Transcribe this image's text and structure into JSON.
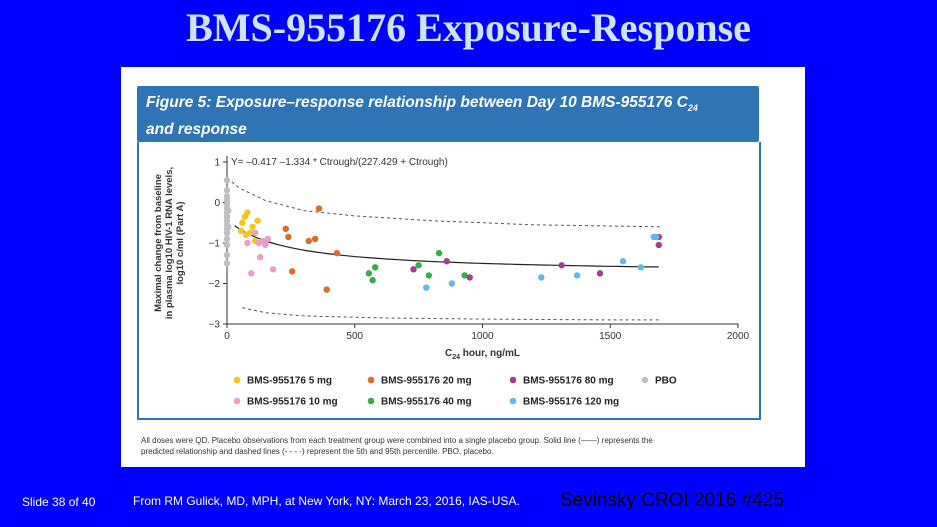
{
  "slide": {
    "title": "BMS-955176 Exposure-Response",
    "slide_number": "Slide 38 of 40",
    "source": "From RM Gulick, MD, MPH, at New York, NY: March 23, 2016, IAS-USA.",
    "citation": "Sevinsky CROI 2016 #425"
  },
  "figure": {
    "title_main": "Figure 5: Exposure–response relationship between Day 10 BMS-955176 C",
    "title_sub": "24",
    "title_line2": "and response",
    "footnote_line1": "All doses were QD. Placebo observations from each treatment group were combined into a single placebo group. Solid line (——) represents the",
    "footnote_line2": "predicted relationship and dashed lines (- - - -) represent the 5th and 95th percentile. PBO, placebo."
  },
  "chart_data": {
    "type": "scatter",
    "equation": "Y= –0.417 –1.334 * Ctrough/(227.429 + Ctrough)",
    "xlabel_main": "C",
    "xlabel_sub": "24",
    "xlabel_rest": " hour, ng/mL",
    "ylabel_line1": "Maximal change from baseline",
    "ylabel_line2": "in plasma log10 HIV-1 RNA levels,",
    "ylabel_line3": "log10 c/ml (Part A)",
    "xlim": [
      0,
      2000
    ],
    "ylim": [
      -3,
      1
    ],
    "xticks": [
      0,
      500,
      1000,
      1500,
      2000
    ],
    "xtick_labels": [
      "0",
      "500",
      "1000",
      "1500",
      "2000"
    ],
    "yticks": [
      1,
      0,
      -1,
      -2,
      -3
    ],
    "ytick_labels": [
      "1",
      "0",
      "−1",
      "−2",
      "−3"
    ],
    "model": {
      "a": -0.417,
      "b": -1.334,
      "ec50": 227.429
    },
    "lower_band": [
      [
        60,
        -2.6
      ],
      [
        150,
        -2.72
      ],
      [
        300,
        -2.8
      ],
      [
        600,
        -2.85
      ],
      [
        1000,
        -2.88
      ],
      [
        1500,
        -2.9
      ],
      [
        1700,
        -2.9
      ]
    ],
    "upper_band": [
      [
        0,
        0.6
      ],
      [
        50,
        0.35
      ],
      [
        150,
        0.05
      ],
      [
        300,
        -0.2
      ],
      [
        500,
        -0.33
      ],
      [
        800,
        -0.45
      ],
      [
        1200,
        -0.55
      ],
      [
        1700,
        -0.6
      ]
    ],
    "series": [
      {
        "name": "BMS-955176 5 mg",
        "color": "#f2c81c",
        "points": [
          [
            70,
            -0.35
          ],
          [
            80,
            -0.25
          ],
          [
            60,
            -0.5
          ],
          [
            100,
            -0.6
          ],
          [
            90,
            -0.75
          ],
          [
            120,
            -0.45
          ],
          [
            75,
            -0.8
          ],
          [
            55,
            -0.7
          ],
          [
            110,
            -0.95
          ]
        ]
      },
      {
        "name": "BMS-955176 10 mg",
        "color": "#e8a0c8",
        "points": [
          [
            80,
            -1.0
          ],
          [
            110,
            -0.75
          ],
          [
            130,
            -1.35
          ],
          [
            150,
            -1.05
          ],
          [
            95,
            -1.75
          ],
          [
            180,
            -1.65
          ],
          [
            125,
            -1.0
          ],
          [
            140,
            -0.95
          ],
          [
            160,
            -0.9
          ]
        ]
      },
      {
        "name": "BMS-955176 20 mg",
        "color": "#e06a2c",
        "points": [
          [
            360,
            -0.15
          ],
          [
            230,
            -0.65
          ],
          [
            320,
            -0.95
          ],
          [
            345,
            -0.9
          ],
          [
            430,
            -1.25
          ],
          [
            255,
            -1.7
          ],
          [
            390,
            -2.15
          ],
          [
            240,
            -0.85
          ]
        ]
      },
      {
        "name": "BMS-955176 40 mg",
        "color": "#3aaa4a",
        "points": [
          [
            555,
            -1.75
          ],
          [
            580,
            -1.6
          ],
          [
            570,
            -1.92
          ],
          [
            750,
            -1.55
          ],
          [
            830,
            -1.25
          ],
          [
            790,
            -1.8
          ],
          [
            930,
            -1.8
          ]
        ]
      },
      {
        "name": "BMS-955176 80 mg",
        "color": "#a0408c",
        "points": [
          [
            730,
            -1.65
          ],
          [
            860,
            -1.45
          ],
          [
            950,
            -1.85
          ],
          [
            1310,
            -1.55
          ],
          [
            1460,
            -1.75
          ],
          [
            1690,
            -0.85
          ],
          [
            1690,
            -1.05
          ]
        ]
      },
      {
        "name": "BMS-955176 120 mg",
        "color": "#62b8e8",
        "points": [
          [
            780,
            -2.1
          ],
          [
            880,
            -2.0
          ],
          [
            1230,
            -1.85
          ],
          [
            1370,
            -1.8
          ],
          [
            1550,
            -1.45
          ],
          [
            1620,
            -1.6
          ],
          [
            1680,
            -0.85
          ],
          [
            1670,
            -0.85
          ]
        ]
      },
      {
        "name": "PBO",
        "color": "#bfbfbf",
        "points": [
          [
            0,
            0.55
          ],
          [
            0,
            0.3
          ],
          [
            0,
            0.15
          ],
          [
            0,
            0.05
          ],
          [
            0,
            -0.05
          ],
          [
            0,
            -0.15
          ],
          [
            0,
            -0.25
          ],
          [
            0,
            -0.35
          ],
          [
            0,
            -0.45
          ],
          [
            0,
            -0.55
          ],
          [
            0,
            -0.65
          ],
          [
            0,
            -0.75
          ],
          [
            0,
            -0.9
          ],
          [
            0,
            -1.05
          ],
          [
            0,
            -1.3
          ],
          [
            0,
            -1.5
          ],
          [
            5,
            -0.2
          ],
          [
            5,
            -0.6
          ]
        ]
      }
    ],
    "legend": [
      {
        "label": "BMS-955176 5 mg",
        "color": "#f2c81c"
      },
      {
        "label": "BMS-955176 20 mg",
        "color": "#e06a2c"
      },
      {
        "label": "BMS-955176 80 mg",
        "color": "#a0408c"
      },
      {
        "label": "PBO",
        "color": "#bfbfbf"
      },
      {
        "label": "BMS-955176 10 mg",
        "color": "#e8a0c8"
      },
      {
        "label": "BMS-955176 40 mg",
        "color": "#3aaa4a"
      },
      {
        "label": "BMS-955176 120 mg",
        "color": "#62b8e8"
      }
    ]
  }
}
